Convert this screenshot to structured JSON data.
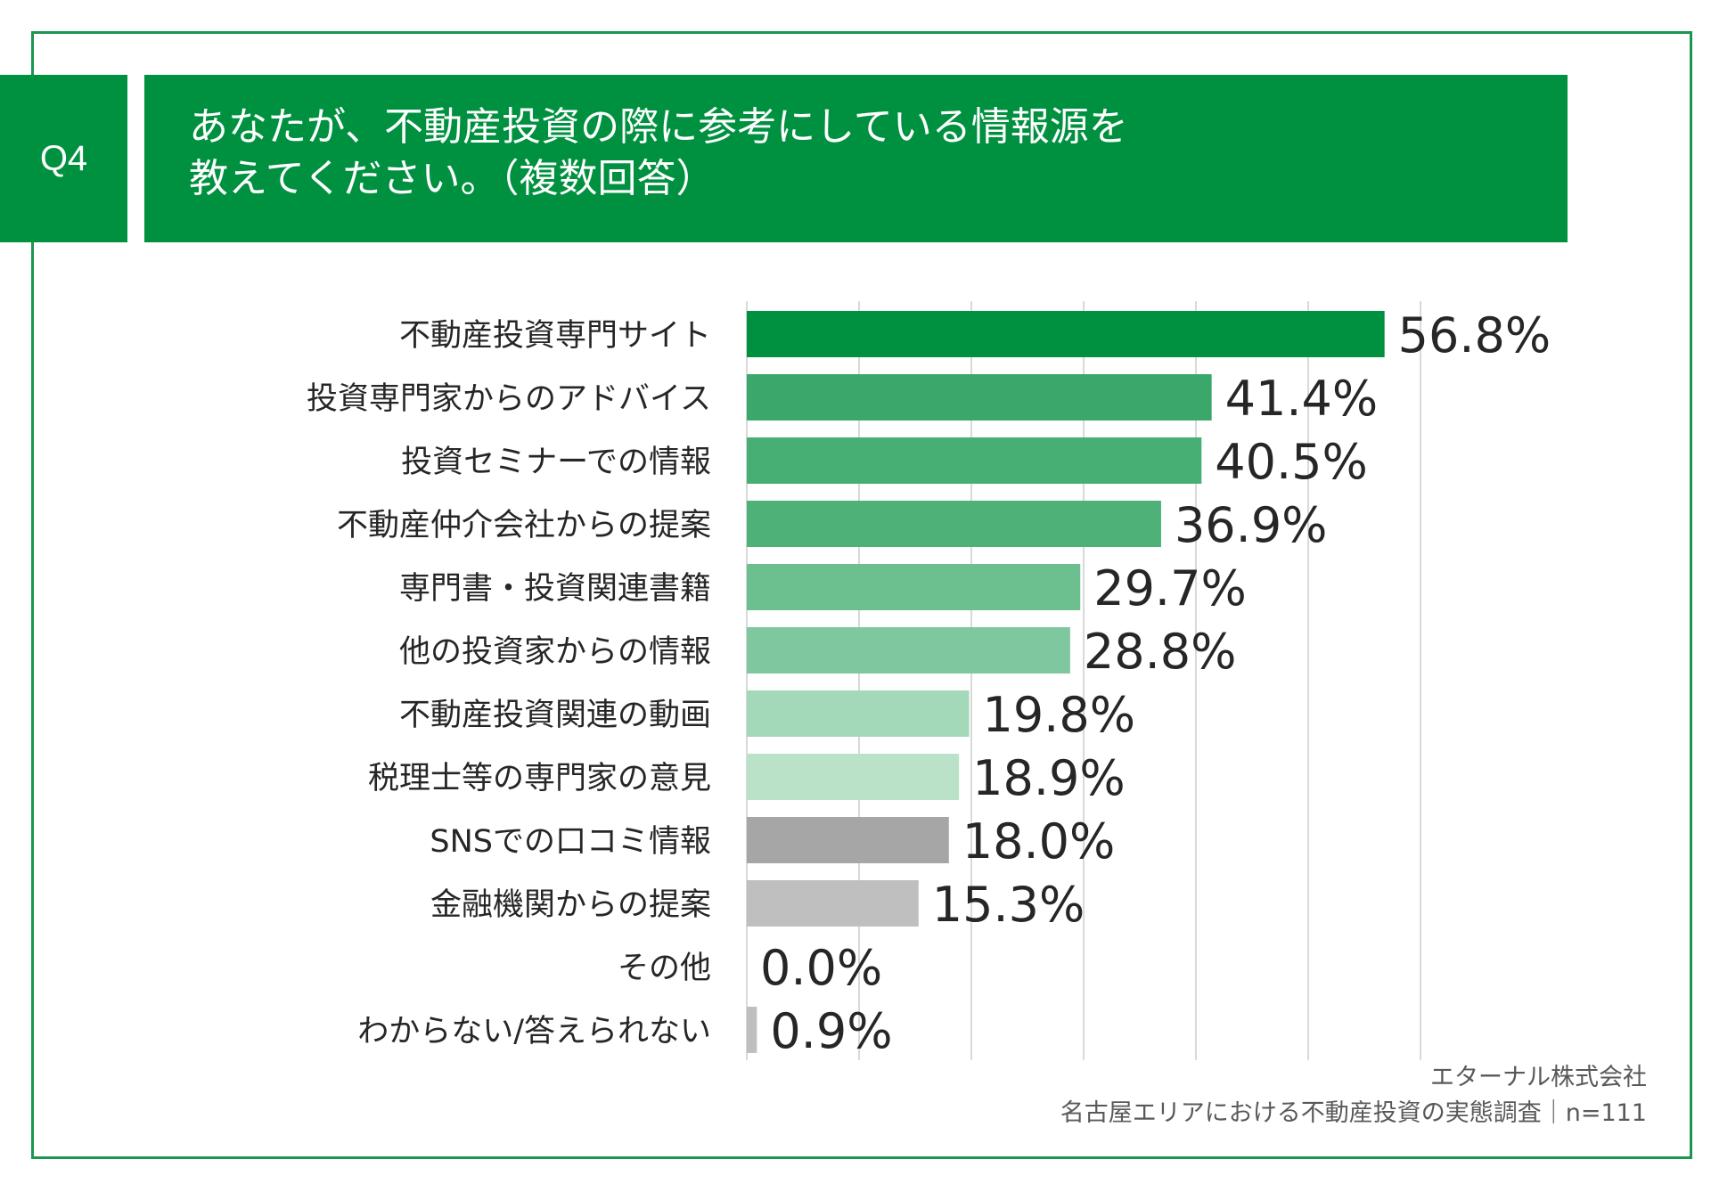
{
  "header": {
    "badge": "Q4",
    "title_line1": "あなたが、不動産投資の際に参考にしている情報源を",
    "title_line2": "教えてください。（複数回答）"
  },
  "chart_data": {
    "type": "bar",
    "orientation": "horizontal",
    "categories": [
      "不動産投資専門サイト",
      "投資専門家からのアドバイス",
      "投資セミナーでの情報",
      "不動産仲介会社からの提案",
      "専門書・投資関連書籍",
      "他の投資家からの情報",
      "不動産投資関連の動画",
      "税理士等の専門家の意見",
      "SNSでの口コミ情報",
      "金融機関からの提案",
      "その他",
      "わからない/答えられない"
    ],
    "values": [
      56.8,
      41.4,
      40.5,
      36.9,
      29.7,
      28.8,
      19.8,
      18.9,
      18.0,
      15.3,
      0.0,
      0.9
    ],
    "labels": [
      "56.8%",
      "41.4%",
      "40.5%",
      "36.9%",
      "29.7%",
      "28.8%",
      "19.8%",
      "18.9%",
      "18.0%",
      "15.3%",
      "0.0%",
      "0.9%"
    ],
    "colors": [
      "#009140",
      "#3aa86a",
      "#47ae74",
      "#4db178",
      "#6cc08f",
      "#7fc79e",
      "#a3d8b8",
      "#b9e2c9",
      "#a6a6a6",
      "#bfbfbf",
      "#bfbfbf",
      "#bfbfbf"
    ],
    "xlim": [
      0,
      60
    ],
    "gridline_step": 10,
    "grid": true,
    "legend": "none"
  },
  "footer": {
    "line1": "エターナル株式会社",
    "line2": "名古屋エリアにおける不動産投資の実態調査｜n=111"
  }
}
